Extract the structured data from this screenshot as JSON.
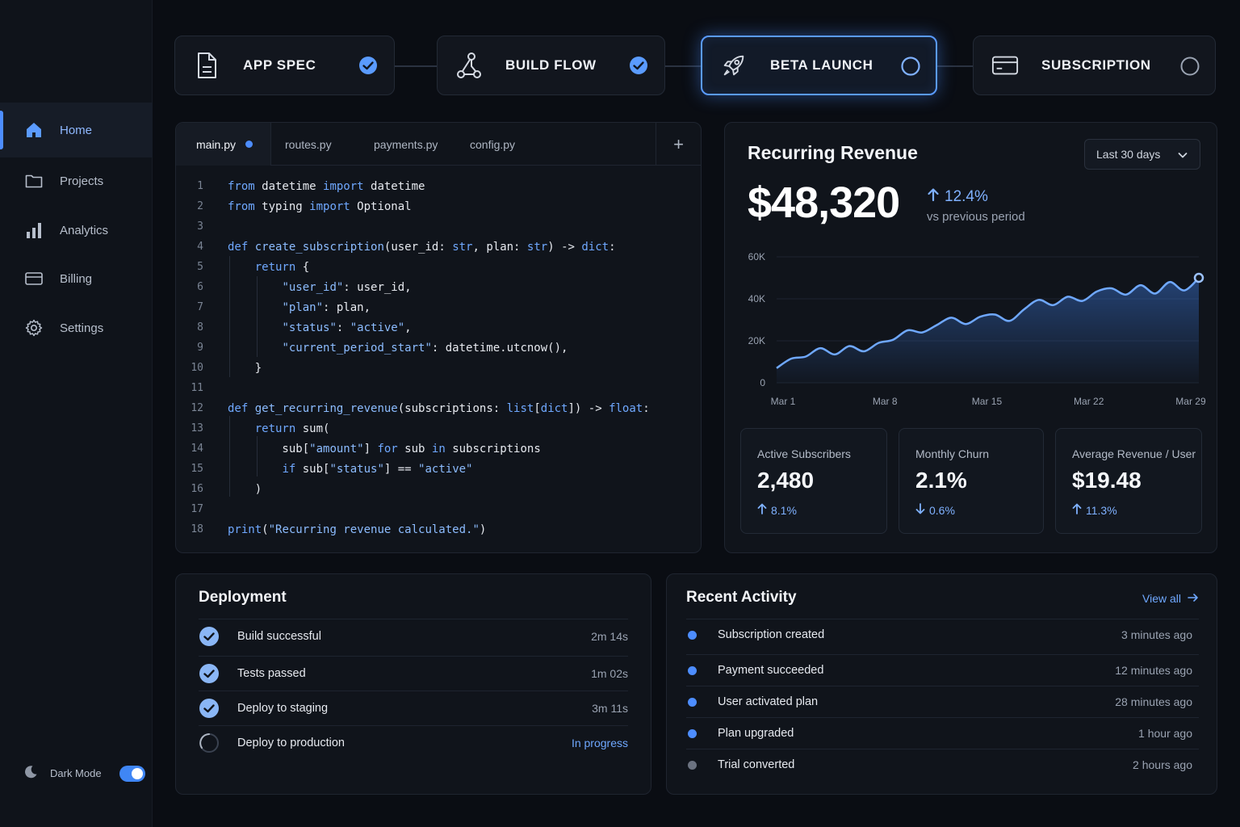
{
  "sidebar": {
    "items": [
      {
        "label": "Home",
        "icon": "home-icon"
      },
      {
        "label": "Projects",
        "icon": "folder-icon"
      },
      {
        "label": "Analytics",
        "icon": "bar-chart-icon"
      },
      {
        "label": "Billing",
        "icon": "credit-card-icon"
      },
      {
        "label": "Settings",
        "icon": "gear-icon"
      }
    ],
    "dark_mode_label": "Dark Mode",
    "dark_mode_on": true
  },
  "steps": [
    {
      "label": "APP SPEC",
      "icon": "document-icon",
      "status": "complete"
    },
    {
      "label": "BUILD FLOW",
      "icon": "flow-icon",
      "status": "complete"
    },
    {
      "label": "BETA LAUNCH",
      "icon": "rocket-icon",
      "status": "active"
    },
    {
      "label": "SUBSCRIPTION",
      "icon": "credit-card-icon",
      "status": "pending"
    }
  ],
  "editor": {
    "tabs": [
      "main.py",
      "routes.py",
      "payments.py",
      "config.py"
    ],
    "active_tab": "main.py",
    "add_tab_label": "+",
    "line_numbers": [
      "1",
      "2",
      "3",
      "4",
      "5",
      "6",
      "7",
      "8",
      "9",
      "10",
      "11",
      "12",
      "13",
      "14",
      "15",
      "16",
      "17",
      "18"
    ]
  },
  "revenue": {
    "title": "Recurring Revenue",
    "range": "Last 30 days",
    "value": "$48,320",
    "delta": "12.4%",
    "delta_caption": "vs previous period"
  },
  "chart_data": {
    "type": "area",
    "x": [
      "Mar 1",
      "Mar 2",
      "Mar 3",
      "Mar 4",
      "Mar 5",
      "Mar 6",
      "Mar 7",
      "Mar 8",
      "Mar 9",
      "Mar 10",
      "Mar 11",
      "Mar 12",
      "Mar 13",
      "Mar 14",
      "Mar 15",
      "Mar 16",
      "Mar 17",
      "Mar 18",
      "Mar 19",
      "Mar 20",
      "Mar 21",
      "Mar 22",
      "Mar 23",
      "Mar 24",
      "Mar 25",
      "Mar 26",
      "Mar 27",
      "Mar 28",
      "Mar 29",
      "Mar 30"
    ],
    "values": [
      7000,
      11500,
      12500,
      16500,
      13500,
      17500,
      15000,
      19000,
      20500,
      25000,
      24000,
      27500,
      31000,
      28000,
      31500,
      32500,
      29500,
      35000,
      39500,
      37000,
      41000,
      39000,
      43500,
      45000,
      42000,
      46500,
      42500,
      48000,
      44000,
      50000
    ],
    "xticks": [
      "Mar 1",
      "Mar 8",
      "Mar 15",
      "Mar 22",
      "Mar 29"
    ],
    "yticks": [
      "0",
      "20K",
      "40K",
      "60K"
    ],
    "ylim": [
      0,
      60000
    ],
    "grid": true,
    "color": "#6fa8ff"
  },
  "kpis": [
    {
      "label": "Active Subscribers",
      "value": "2,480",
      "delta": "8.1%",
      "direction": "up"
    },
    {
      "label": "Monthly Churn",
      "value": "2.1%",
      "delta": "0.6%",
      "direction": "down"
    },
    {
      "label": "Average Revenue / User",
      "value": "$19.48",
      "delta": "11.3%",
      "direction": "up"
    }
  ],
  "deployment": {
    "title": "Deployment",
    "rows": [
      {
        "label": "Build successful",
        "time": "2m 14s",
        "status": "done"
      },
      {
        "label": "Tests passed",
        "time": "1m 02s",
        "status": "done"
      },
      {
        "label": "Deploy to staging",
        "time": "3m 11s",
        "status": "done"
      },
      {
        "label": "Deploy to production",
        "time": "In progress",
        "status": "progress"
      }
    ]
  },
  "activity": {
    "title": "Recent Activity",
    "view_all": "View all",
    "rows": [
      {
        "label": "Subscription created",
        "time": "3 minutes ago"
      },
      {
        "label": "Payment succeeded",
        "time": "12 minutes ago"
      },
      {
        "label": "User activated plan",
        "time": "28 minutes ago"
      },
      {
        "label": "Plan upgraded",
        "time": "1 hour ago"
      },
      {
        "label": "Trial converted",
        "time": "2 hours ago"
      }
    ]
  },
  "colors": {
    "accent": "#4d8dff",
    "background": "#0a0d13",
    "card": "#10141b"
  }
}
